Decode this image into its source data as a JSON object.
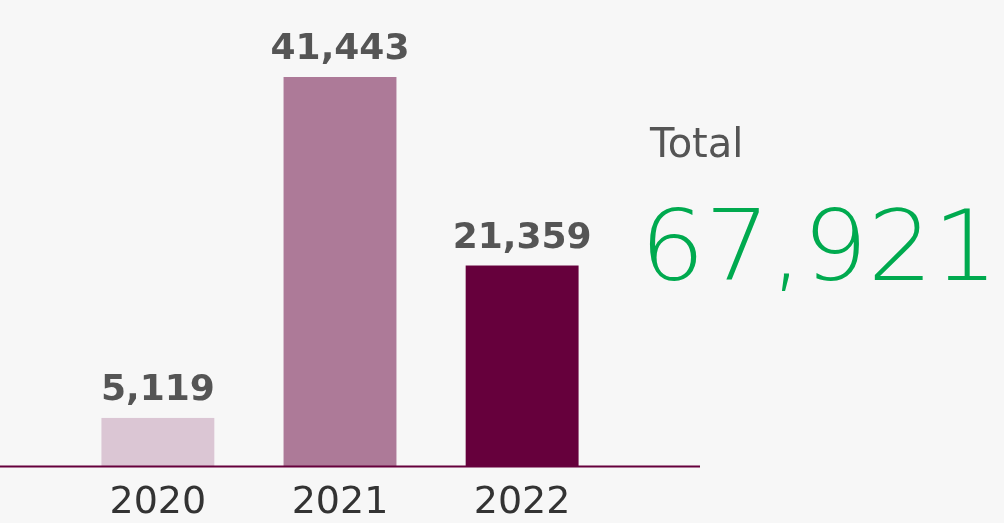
{
  "chart_data": {
    "type": "bar",
    "categories": [
      "2020",
      "2021",
      "2022"
    ],
    "values": [
      5119,
      41443,
      21359
    ],
    "colors": [
      "#dbc6d4",
      "#ad7a98",
      "#66003c"
    ],
    "value_labels": [
      "5,119",
      "41,443",
      "21,359"
    ],
    "annotations": [
      "Total",
      "67,921"
    ]
  }
}
